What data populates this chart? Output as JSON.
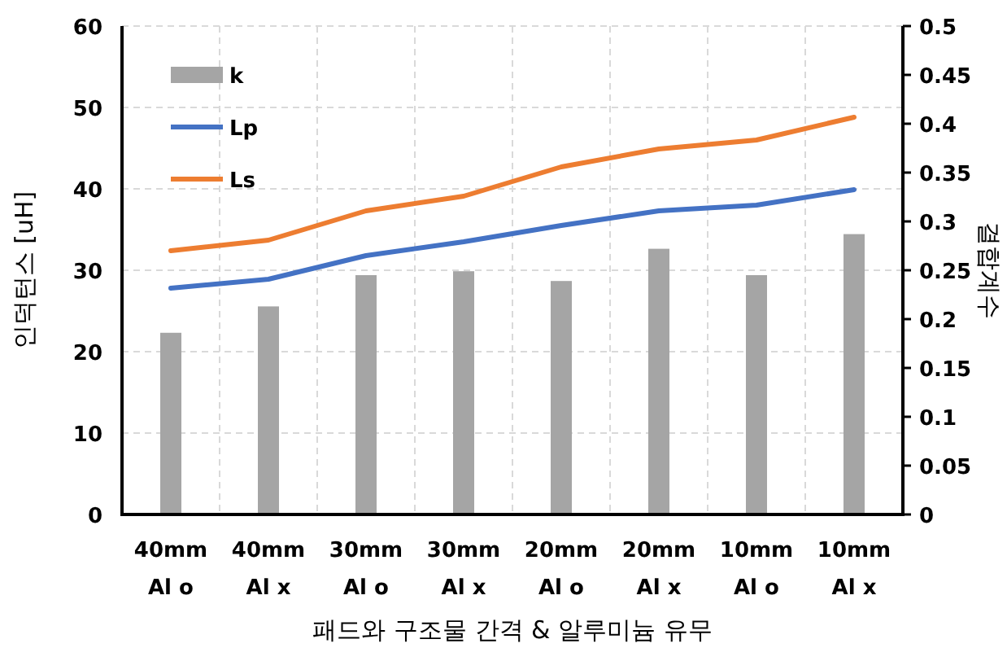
{
  "chart_data": {
    "type": "bar",
    "xlabel": "패드와 구조물 간격 & 알루미늄 유무",
    "ylabel": "인덕턴스 [uH]",
    "y2label": "결합계수",
    "categories": [
      "40mm\nAl o",
      "40mm\nAl x",
      "30mm\nAl o",
      "30mm\nAl x",
      "20mm\nAl o",
      "20mm\nAl x",
      "10mm\nAl o",
      "10mm\nAl x"
    ],
    "series": [
      {
        "name": "k",
        "axis": "y2",
        "color": "#a5a5a5",
        "values": [
          0.186,
          0.213,
          0.245,
          0.249,
          0.239,
          0.272,
          0.245,
          0.287
        ]
      },
      {
        "name": "Lp",
        "type": "line",
        "color": "#4472c4",
        "values": [
          27.8,
          28.9,
          31.8,
          33.5,
          35.5,
          37.3,
          38.0,
          39.9
        ]
      },
      {
        "name": "Ls",
        "type": "line",
        "color": "#ed7d31",
        "values": [
          32.4,
          33.7,
          37.3,
          39.1,
          42.7,
          44.9,
          46.0,
          48.8
        ]
      }
    ],
    "ylim": [
      0,
      60
    ],
    "yticks": [
      0,
      10,
      20,
      30,
      40,
      50,
      60
    ],
    "y2lim": [
      0,
      0.5
    ],
    "y2ticks": [
      0,
      0.05,
      0.1,
      0.15,
      0.2,
      0.25,
      0.3,
      0.35,
      0.4,
      0.45,
      0.5
    ],
    "grid": true,
    "legend": "top left"
  }
}
